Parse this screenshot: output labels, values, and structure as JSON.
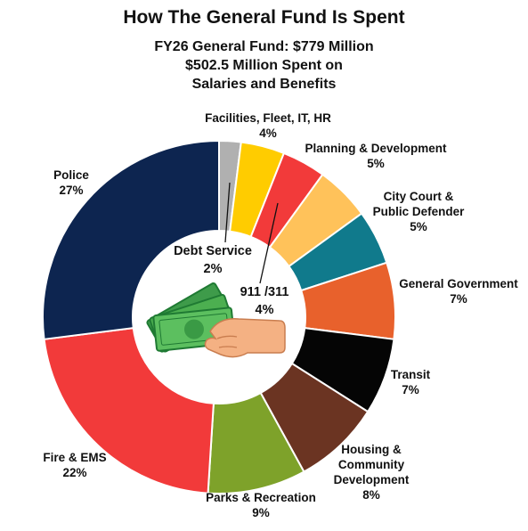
{
  "chart_data": {
    "type": "pie",
    "title": "How The General Fund Is Spent",
    "subtitle_lines": [
      "FY26 General Fund: $779 Million",
      "$502.5 Million Spent on",
      "Salaries and Benefits"
    ],
    "slices": [
      {
        "name": "Debt Service",
        "value": 2,
        "label": "2%",
        "color": "#b0b0b0"
      },
      {
        "name": "Facilities, Fleet, IT, HR",
        "value": 4,
        "label": "4%",
        "color": "#ffcc00"
      },
      {
        "name": "911 /311",
        "value": 4,
        "label": "4%",
        "color": "#f23a3a"
      },
      {
        "name": "Planning & Development",
        "value": 5,
        "label": "5%",
        "color": "#ffc25a"
      },
      {
        "name": "City Court & Public Defender",
        "value": 5,
        "label": "5%",
        "color": "#107a8c"
      },
      {
        "name": "General Government",
        "value": 7,
        "label": "7%",
        "color": "#e8612c"
      },
      {
        "name": "Transit",
        "value": 7,
        "label": "7%",
        "color": "#050505"
      },
      {
        "name": "Housing & Community Development",
        "value": 8,
        "label": "8%",
        "color": "#6b3422"
      },
      {
        "name": "Parks & Recreation",
        "value": 9,
        "label": "9%",
        "color": "#7ea22a"
      },
      {
        "name": "Fire & EMS",
        "value": 22,
        "label": "22%",
        "color": "#f23a3a"
      },
      {
        "name": "Police",
        "value": 27,
        "label": "27%",
        "color": "#0d2550"
      }
    ]
  },
  "labels": {
    "facilities": {
      "line1": "Facilities, Fleet, IT, HR",
      "pct": "4%"
    },
    "planning": {
      "line1": "Planning & Development",
      "pct": "5%"
    },
    "court": {
      "line1": "City Court &",
      "line2": "Public Defender",
      "pct": "5%"
    },
    "general_gov": {
      "line1": "General Government",
      "pct": "7%"
    },
    "transit": {
      "line1": "Transit",
      "pct": "7%"
    },
    "housing": {
      "line1": "Housing &",
      "line2": "Community",
      "line3": "Development",
      "pct": "8%"
    },
    "parks": {
      "line1": "Parks & Recreation",
      "pct": "9%"
    },
    "fire": {
      "line1": "Fire & EMS",
      "pct": "22%"
    },
    "police": {
      "line1": "Police",
      "pct": "27%"
    },
    "debt": {
      "line1": "Debt Service",
      "pct": "2%"
    },
    "call911": {
      "line1": "911 /311",
      "pct": "4%"
    }
  },
  "colors": {
    "money": "#4caf50",
    "money_dark": "#1f7a33",
    "skin": "#f4b183",
    "skin_dark": "#c97d4f"
  }
}
